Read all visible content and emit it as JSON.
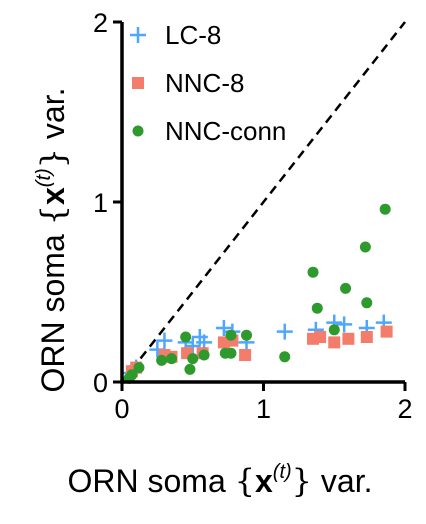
{
  "chart_data": {
    "type": "scatter",
    "xlabel": {
      "prefix": "ORN soma ",
      "bold": "x",
      "sup": "(t)",
      "suffix": " var."
    },
    "ylabel": {
      "prefix": "ORN soma ",
      "bold": "x",
      "sup": "(t)",
      "suffix": " var."
    },
    "xlim": [
      0,
      2
    ],
    "ylim": [
      0,
      2
    ],
    "xticks": [
      0,
      1,
      2
    ],
    "yticks": [
      0,
      1,
      2
    ],
    "xtick_labels": [
      "0",
      "1",
      "2"
    ],
    "ytick_labels": [
      "0",
      "1",
      "2"
    ],
    "grid": false,
    "legend_position": "top-left",
    "diagonal": true,
    "series": [
      {
        "name": "LC-8",
        "marker": "plus",
        "color": "#4da6ff",
        "points": [
          [
            0.06,
            0.05
          ],
          [
            0.1,
            0.08
          ],
          [
            0.25,
            0.18
          ],
          [
            0.3,
            0.23
          ],
          [
            0.45,
            0.22
          ],
          [
            0.5,
            0.2
          ],
          [
            0.55,
            0.25
          ],
          [
            0.58,
            0.22
          ],
          [
            0.72,
            0.3
          ],
          [
            0.78,
            0.28
          ],
          [
            0.88,
            0.22
          ],
          [
            1.15,
            0.28
          ],
          [
            1.37,
            0.29
          ],
          [
            1.5,
            0.33
          ],
          [
            1.57,
            0.32
          ],
          [
            1.73,
            0.3
          ],
          [
            1.85,
            0.33
          ]
        ]
      },
      {
        "name": "NNC-8",
        "marker": "square",
        "color": "#f47c6b",
        "points": [
          [
            0.07,
            0.06
          ],
          [
            0.1,
            0.08
          ],
          [
            0.3,
            0.15
          ],
          [
            0.35,
            0.14
          ],
          [
            0.46,
            0.16
          ],
          [
            0.57,
            0.16
          ],
          [
            0.72,
            0.22
          ],
          [
            0.78,
            0.23
          ],
          [
            0.87,
            0.15
          ],
          [
            1.35,
            0.24
          ],
          [
            1.4,
            0.25
          ],
          [
            1.5,
            0.22
          ],
          [
            1.6,
            0.24
          ],
          [
            1.73,
            0.25
          ],
          [
            1.87,
            0.28
          ]
        ]
      },
      {
        "name": "NNC-conn",
        "marker": "circle",
        "color": "#2e9a2e",
        "points": [
          [
            0.05,
            0.02
          ],
          [
            0.07,
            0.04
          ],
          [
            0.12,
            0.08
          ],
          [
            0.28,
            0.12
          ],
          [
            0.35,
            0.13
          ],
          [
            0.45,
            0.25
          ],
          [
            0.48,
            0.07
          ],
          [
            0.5,
            0.13
          ],
          [
            0.58,
            0.15
          ],
          [
            0.73,
            0.16
          ],
          [
            0.77,
            0.16
          ],
          [
            0.77,
            0.26
          ],
          [
            0.88,
            0.26
          ],
          [
            1.15,
            0.14
          ],
          [
            1.35,
            0.61
          ],
          [
            1.38,
            0.41
          ],
          [
            1.5,
            0.29
          ],
          [
            1.58,
            0.52
          ],
          [
            1.72,
            0.75
          ],
          [
            1.73,
            0.44
          ],
          [
            1.86,
            0.96
          ]
        ]
      }
    ]
  }
}
